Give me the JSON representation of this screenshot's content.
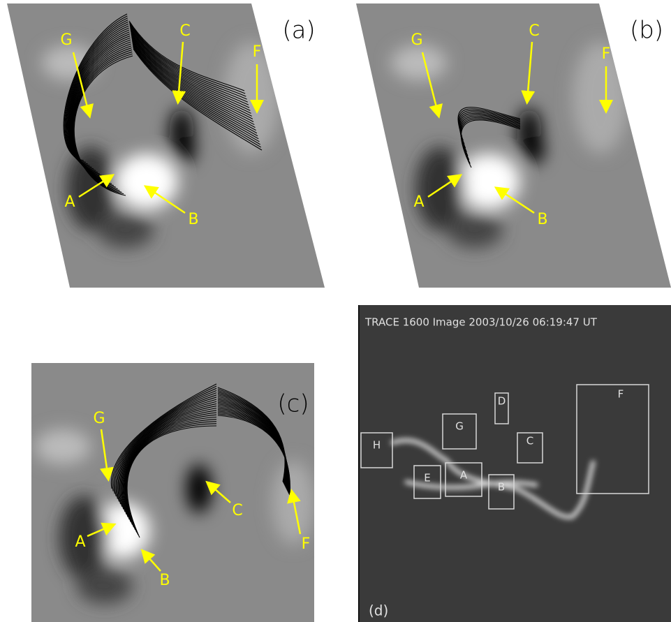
{
  "panels": [
    {
      "label": "(a)",
      "markers": [
        "G",
        "C",
        "F",
        "A",
        "B"
      ]
    },
    {
      "label": "(b)",
      "markers": [
        "G",
        "C",
        "F",
        "A",
        "B"
      ]
    },
    {
      "label": "(c)",
      "markers": [
        "G",
        "C",
        "A",
        "B",
        "F"
      ]
    },
    {
      "label": "(d)",
      "title": "TRACE 1600 Image 2003/10/26 06:19:47 UT",
      "boxes": [
        "H",
        "G",
        "D",
        "C",
        "F",
        "E",
        "A",
        "B"
      ]
    }
  ]
}
